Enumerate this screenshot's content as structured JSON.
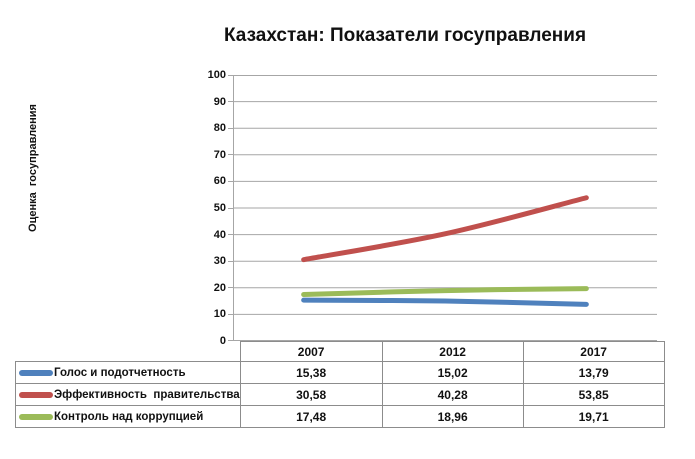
{
  "title": "Казахстан: Показатели госуправления",
  "colors": {
    "blue": "#4F81BD",
    "red": "#C0504D",
    "green": "#9BBB59",
    "gridline": "#A6A6A6",
    "axis_line": "#A6A6A6",
    "table_border": "#8C8C8C",
    "text": "#111111"
  },
  "chart_data": {
    "type": "line",
    "title": "Казахстан: Показатели госуправления",
    "ylabel": "Оценка  госуправления",
    "xlabel": "",
    "categories": [
      "2007",
      "2012",
      "2017"
    ],
    "series": [
      {
        "name": "Голос и подотчетность",
        "color": "#4F81BD",
        "values": [
          15.38,
          15.02,
          13.79
        ],
        "value_labels": [
          "15,38",
          "15,02",
          "13,79"
        ]
      },
      {
        "name": "Эффективность  правительства",
        "color": "#C0504D",
        "values": [
          30.58,
          40.28,
          53.85
        ],
        "value_labels": [
          "30,58",
          "40,28",
          "53,85"
        ]
      },
      {
        "name": "Контроль над коррупцией",
        "color": "#9BBB59",
        "values": [
          17.48,
          18.96,
          19.71
        ],
        "value_labels": [
          "17,48",
          "18,96",
          "19,71"
        ]
      }
    ],
    "ylim": [
      0,
      100
    ],
    "ytick_step": 10,
    "grid": true,
    "smooth_lines": true,
    "legend_position": "table-left-of-data-table"
  }
}
